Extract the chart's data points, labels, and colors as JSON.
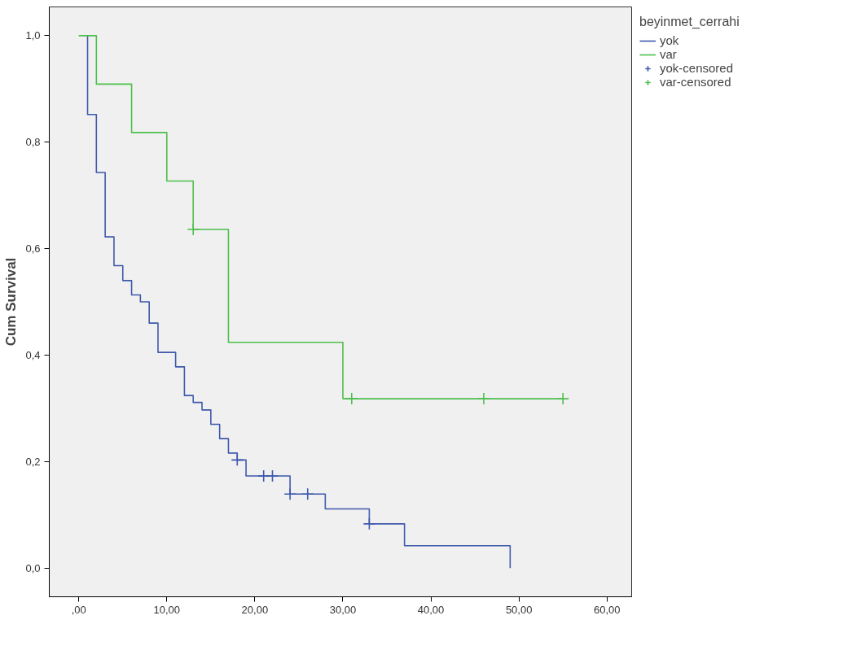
{
  "chart_data": {
    "type": "step",
    "ylabel": "Cum Survival",
    "legend_title": "beyinmet_cerrahi",
    "legend": "right",
    "grid": false,
    "xlim": [
      -3.35,
      62.8
    ],
    "ylim": [
      -0.054,
      1.054
    ],
    "xticks": [
      {
        "value": 0,
        "label": ",00"
      },
      {
        "value": 10,
        "label": "10,00"
      },
      {
        "value": 20,
        "label": "20,00"
      },
      {
        "value": 30,
        "label": "30,00"
      },
      {
        "value": 40,
        "label": "40,00"
      },
      {
        "value": 50,
        "label": "50,00"
      },
      {
        "value": 60,
        "label": "60,00"
      }
    ],
    "yticks": [
      {
        "value": 0,
        "label": "0,0"
      },
      {
        "value": 0.2,
        "label": "0,2"
      },
      {
        "value": 0.4,
        "label": "0,4"
      },
      {
        "value": 0.6,
        "label": "0,6"
      },
      {
        "value": 0.8,
        "label": "0,8"
      },
      {
        "value": 1,
        "label": "1,0"
      }
    ],
    "series": [
      {
        "name": "yok",
        "color": "#3e58ac",
        "x": [
          1,
          1,
          2,
          3,
          4,
          5,
          6,
          7,
          8,
          9,
          11,
          12,
          13,
          14,
          15,
          16,
          17,
          18,
          19,
          24,
          28,
          33,
          37,
          49,
          49
        ],
        "values": [
          1,
          0.852,
          0.743,
          0.622,
          0.568,
          0.54,
          0.513,
          0.5,
          0.46,
          0.405,
          0.378,
          0.324,
          0.311,
          0.297,
          0.27,
          0.243,
          0.216,
          0.203,
          0.173,
          0.139,
          0.111,
          0.083,
          0.042,
          0.042,
          0
        ]
      },
      {
        "name": "var",
        "color": "#4cbf4c",
        "x": [
          0,
          2,
          6,
          10,
          13,
          17,
          30,
          55
        ],
        "values": [
          1,
          0.909,
          0.818,
          0.727,
          0.636,
          0.424,
          0.318,
          0.318
        ]
      },
      {
        "name": "yok-censored",
        "type": "scatter",
        "marker": "cross",
        "color": "#3e58ac",
        "x": [
          18,
          21,
          22,
          24,
          26,
          33
        ],
        "values": [
          0.203,
          0.173,
          0.173,
          0.139,
          0.139,
          0.083
        ]
      },
      {
        "name": "var-censored",
        "type": "scatter",
        "marker": "cross",
        "color": "#4cbf4c",
        "x": [
          13,
          31,
          46,
          55
        ],
        "values": [
          0.636,
          0.318,
          0.318,
          0.318
        ]
      }
    ]
  }
}
